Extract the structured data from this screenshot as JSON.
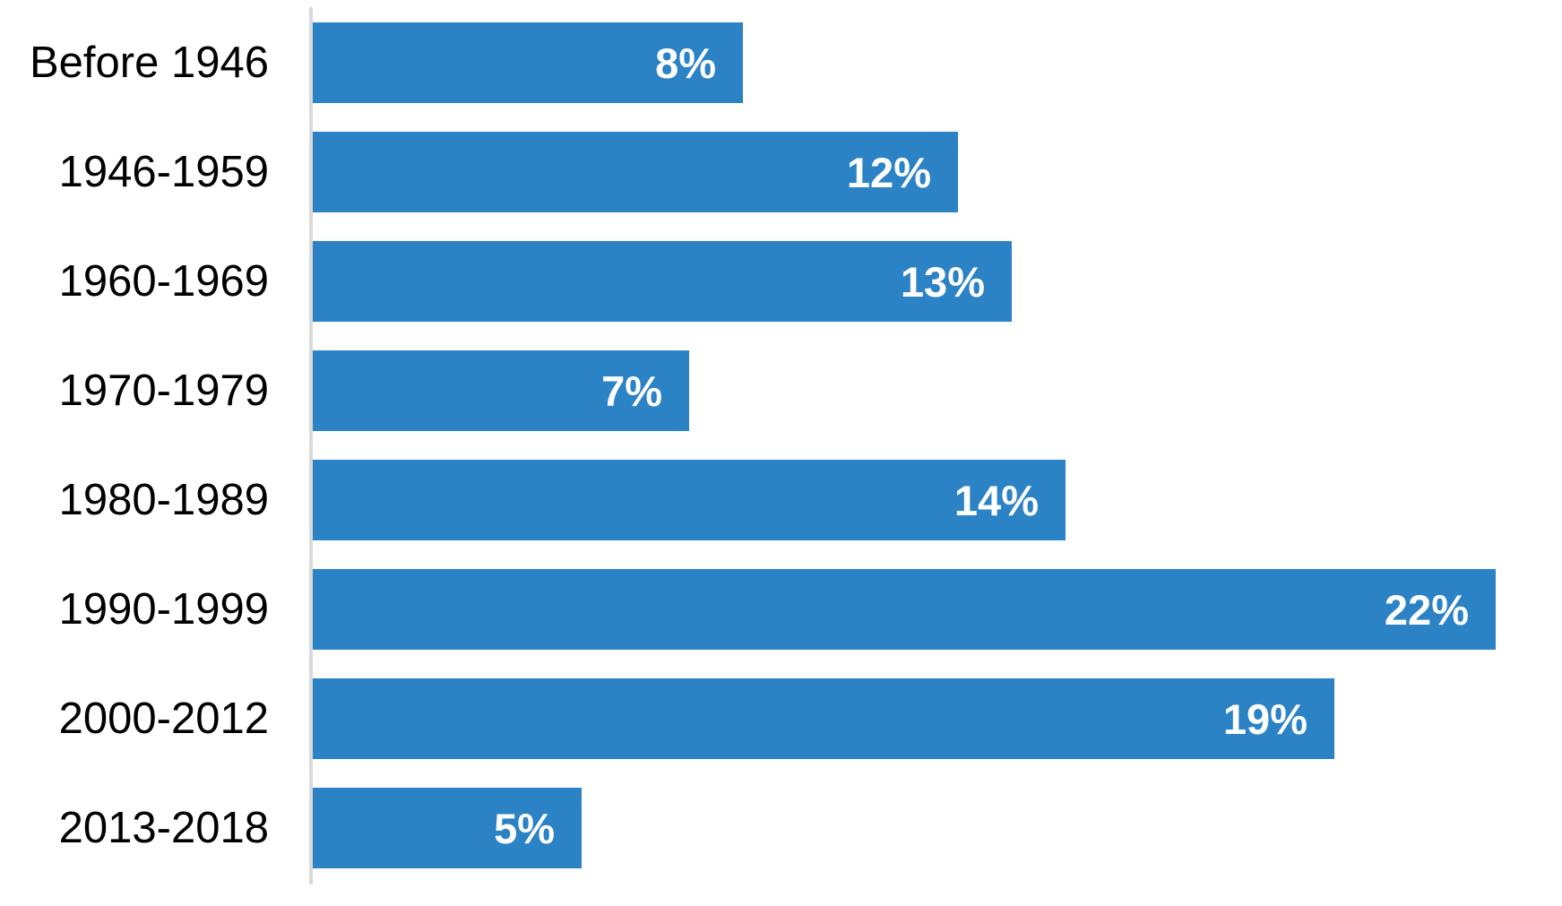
{
  "chart_data": {
    "type": "bar",
    "orientation": "horizontal",
    "title": "",
    "xlabel": "",
    "ylabel": "",
    "categories": [
      "Before 1946",
      "1946-1959",
      "1960-1969",
      "1970-1979",
      "1980-1989",
      "1990-1999",
      "2000-2012",
      "2013-2018"
    ],
    "values": [
      8,
      12,
      13,
      7,
      14,
      22,
      19,
      5
    ],
    "value_labels": [
      "8%",
      "12%",
      "13%",
      "7%",
      "14%",
      "22%",
      "19%",
      "5%"
    ],
    "xlim": [
      0,
      23.25
    ],
    "grid": false,
    "legend": false,
    "bar_color": "#2b83c5",
    "value_label_color": "#ffffff",
    "category_label_color": "#000000",
    "axis_line_color": "#d9d9d9",
    "background_color": "#ffffff"
  }
}
